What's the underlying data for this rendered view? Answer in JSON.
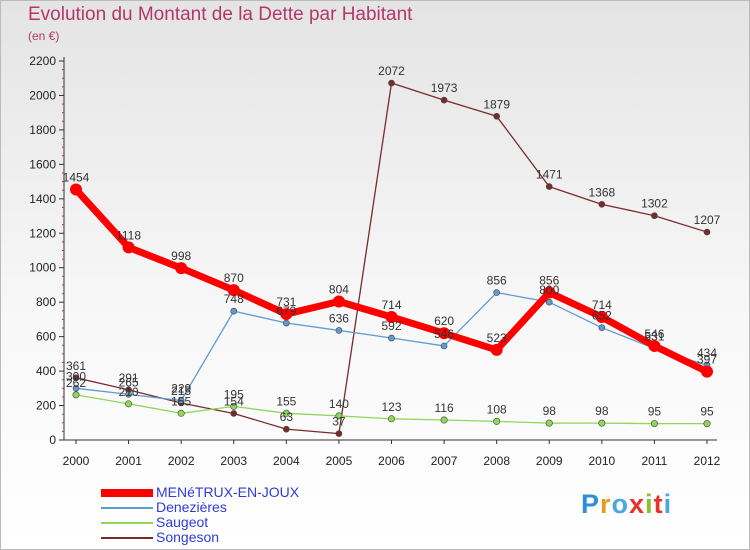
{
  "title": "Evolution du Montant de la Dette par Habitant",
  "subtitle": "(en €)",
  "logo": {
    "text": "Proxiti",
    "colors": [
      "#2e8fd6",
      "#e89b1c",
      "#4aa8e0",
      "#e5332a",
      "#8bbf2c",
      "#e5332a",
      "#4aa8e0"
    ]
  },
  "chart_data": {
    "type": "line",
    "ylim": [
      0,
      2200
    ],
    "yticks": [
      0,
      200,
      400,
      600,
      800,
      1000,
      1200,
      1400,
      1600,
      1800,
      2000,
      2200
    ],
    "categories": [
      "2000",
      "2001",
      "2002",
      "2003",
      "2004",
      "2005",
      "2006",
      "2007",
      "2008",
      "2009",
      "2010",
      "2011",
      "2012"
    ],
    "grid": false,
    "legend_position": "bottom-left",
    "series": [
      {
        "name": "Songeson",
        "color": "#7a2a2a",
        "width": 1.3,
        "marker": 3,
        "values": [
          361,
          291,
          215,
          154,
          63,
          37,
          2072,
          1973,
          1879,
          1471,
          1368,
          1302,
          1207
        ]
      },
      {
        "name": "Saugeot",
        "color": "#8fd65a",
        "width": 1.3,
        "marker": 3.2,
        "values": [
          262,
          210,
          155,
          195,
          155,
          140,
          123,
          116,
          108,
          98,
          98,
          95,
          95
        ]
      },
      {
        "name": "Denezières",
        "color": "#5f9bd0",
        "width": 1.3,
        "marker": 3,
        "values": [
          300,
          265,
          229,
          748,
          679,
          636,
          592,
          546,
          856,
          800,
          652,
          531,
          434
        ]
      },
      {
        "name": "MENéTRUX-EN-JOUX",
        "color": "#ff0000",
        "width": 7,
        "marker": 6,
        "values": [
          1454,
          1118,
          998,
          870,
          731,
          804,
          714,
          620,
          523,
          856,
          714,
          546,
          397
        ]
      }
    ]
  }
}
